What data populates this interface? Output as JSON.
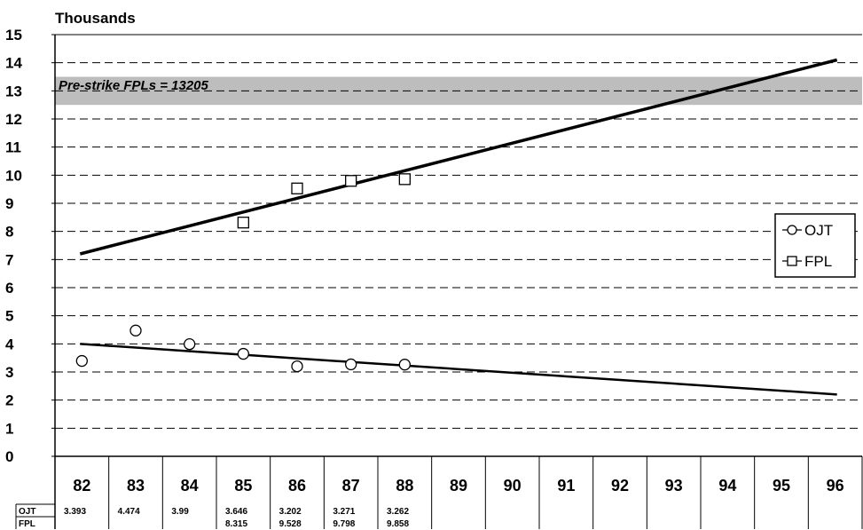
{
  "chart_data": {
    "type": "scatter",
    "unit_label": "Thousands",
    "ylim": [
      0,
      15
    ],
    "yticks": [
      "0",
      "1",
      "2",
      "3",
      "4",
      "5",
      "6",
      "7",
      "8",
      "9",
      "10",
      "11",
      "12",
      "13",
      "14",
      "15"
    ],
    "categories": [
      "82",
      "83",
      "84",
      "85",
      "86",
      "87",
      "88",
      "89",
      "90",
      "91",
      "92",
      "93",
      "94",
      "95",
      "96"
    ],
    "grid": "horizontal dashed",
    "legend_position": "right",
    "band": {
      "label": "Pre-strike FPLs = 13205",
      "value": 13.205,
      "range": [
        12.5,
        13.5
      ],
      "color": "#bdbdbd"
    },
    "series": [
      {
        "name": "OJT",
        "marker": "circle",
        "values": [
          3.393,
          4.474,
          3.99,
          3.646,
          3.202,
          3.271,
          3.262,
          null,
          null,
          null,
          null,
          null,
          null,
          null,
          null
        ],
        "trend": {
          "from": [
            "82",
            4.0
          ],
          "to": [
            "96",
            2.2
          ]
        }
      },
      {
        "name": "FPL",
        "marker": "square",
        "values": [
          null,
          null,
          null,
          8.315,
          9.528,
          9.798,
          9.858,
          null,
          null,
          null,
          null,
          null,
          null,
          null,
          null
        ],
        "trend": {
          "from": [
            "82",
            7.2
          ],
          "to": [
            "96",
            14.1
          ]
        }
      }
    ],
    "table": {
      "rows": [
        {
          "label": "OJT",
          "cells": [
            "3.393",
            "4.474",
            "3.99",
            "3.646",
            "3.202",
            "3.271",
            "3.262",
            "",
            "",
            "",
            "",
            "",
            "",
            "",
            ""
          ]
        },
        {
          "label": "FPL",
          "cells": [
            "",
            "",
            "",
            "8.315",
            "9.528",
            "9.798",
            "9.858",
            "",
            "",
            "",
            "",
            "",
            "",
            "",
            ""
          ]
        }
      ]
    }
  }
}
